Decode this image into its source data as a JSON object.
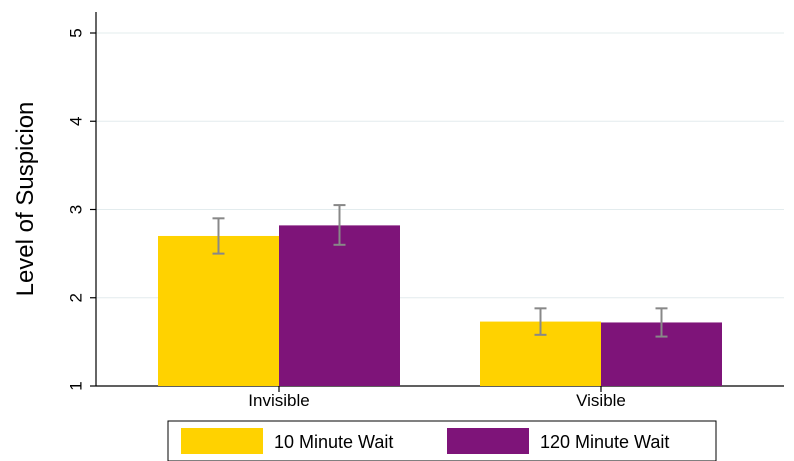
{
  "chart_data": {
    "type": "bar",
    "title": "",
    "xlabel": "",
    "ylabel": "Level of Suspicion",
    "categories": [
      "Invisible",
      "Visible"
    ],
    "yticks": [
      "1",
      "2",
      "3",
      "4",
      "5"
    ],
    "ylim": [
      1,
      5
    ],
    "grid": true,
    "legend_position": "bottom",
    "series": [
      {
        "name": "10 Minute Wait",
        "color": "#FFD200",
        "values": [
          2.7,
          1.73
        ],
        "error_low": [
          2.5,
          1.58
        ],
        "error_high": [
          2.9,
          1.88
        ]
      },
      {
        "name": "120 Minute Wait",
        "color": "#7E1479",
        "values": [
          2.82,
          1.72
        ],
        "error_low": [
          2.6,
          1.56
        ],
        "error_high": [
          3.05,
          1.88
        ]
      }
    ]
  }
}
